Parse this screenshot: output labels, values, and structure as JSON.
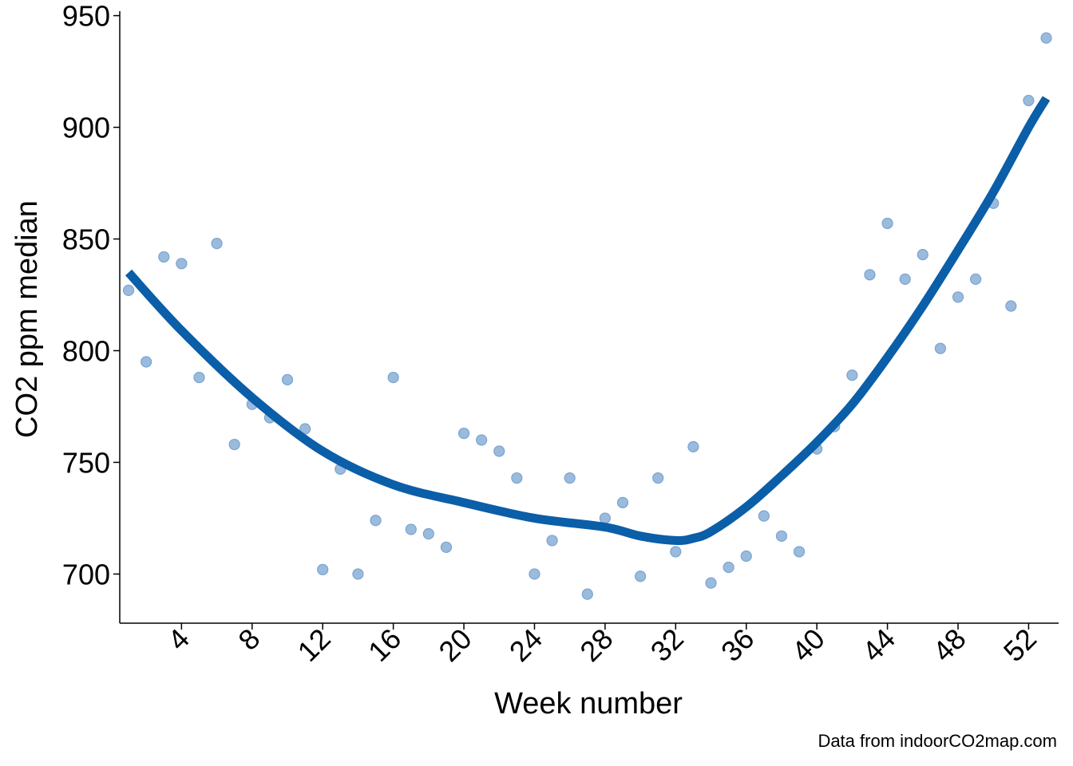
{
  "chart_data": {
    "type": "scatter",
    "xlabel": "Week number",
    "ylabel": "CO2 ppm median",
    "caption": "Data from indoorCO2map.com",
    "xlim": [
      0.5,
      53.7
    ],
    "ylim": [
      678,
      952
    ],
    "x_ticks": [
      4,
      8,
      12,
      16,
      20,
      24,
      28,
      32,
      36,
      40,
      44,
      48,
      52
    ],
    "y_ticks": [
      700,
      750,
      800,
      850,
      900,
      950
    ],
    "points_color": "#8fb4d9",
    "line_color": "#0b5ea8",
    "grid": false,
    "series": [
      {
        "type": "scatter",
        "x": [
          1,
          2,
          3,
          4,
          5,
          6,
          7,
          8,
          9,
          10,
          11,
          12,
          13,
          14,
          15,
          16,
          17,
          18,
          19,
          20,
          21,
          22,
          23,
          24,
          25,
          26,
          27,
          28,
          29,
          30,
          31,
          32,
          33,
          34,
          35,
          36,
          37,
          38,
          39,
          40,
          41,
          42,
          43,
          44,
          45,
          46,
          47,
          48,
          49,
          50,
          51,
          52,
          53
        ],
        "y": [
          827,
          795,
          842,
          839,
          788,
          848,
          758,
          776,
          770,
          787,
          765,
          702,
          747,
          700,
          724,
          788,
          720,
          718,
          712,
          763,
          760,
          755,
          743,
          700,
          715,
          743,
          691,
          725,
          732,
          699,
          743,
          710,
          757,
          696,
          703,
          708,
          726,
          717,
          710,
          756,
          766,
          789,
          834,
          857,
          832,
          843,
          801,
          824,
          832,
          866,
          820,
          912,
          940
        ]
      },
      {
        "type": "line",
        "x": [
          1,
          4,
          8,
          12,
          16,
          20,
          24,
          28,
          30,
          32,
          33,
          34,
          36,
          38,
          40,
          42,
          44,
          46,
          48,
          50,
          52,
          53
        ],
        "y": [
          835,
          809,
          779,
          755,
          740,
          732,
          725,
          721,
          717,
          715,
          716,
          719,
          730,
          744,
          759,
          776,
          797,
          820,
          845,
          871,
          900,
          913
        ]
      }
    ]
  }
}
